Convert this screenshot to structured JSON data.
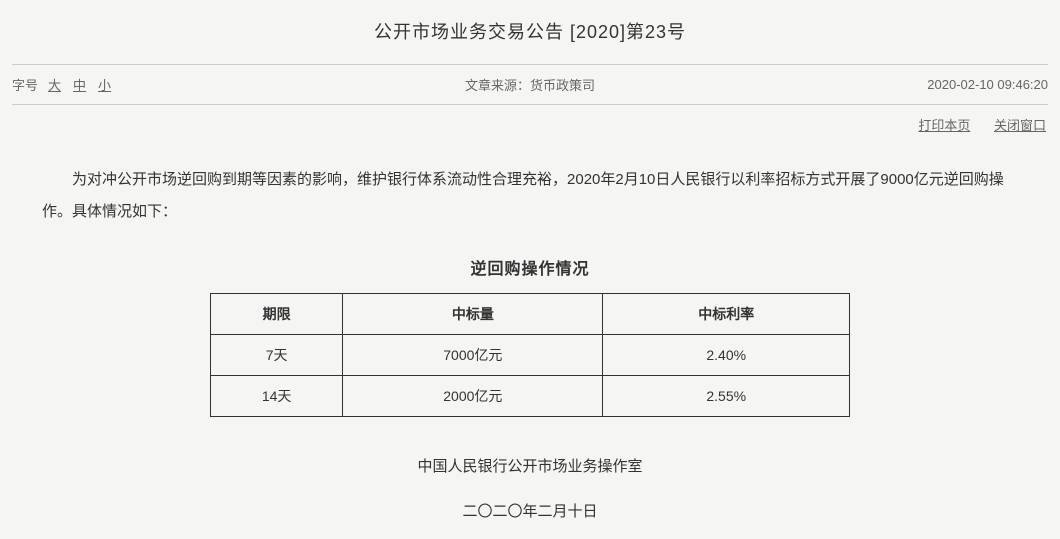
{
  "title": "公开市场业务交易公告 [2020]第23号",
  "meta": {
    "fontSizeLabel": "字号",
    "large": "大",
    "medium": "中",
    "small": "小",
    "sourceLabel": "文章来源：",
    "sourceValue": "货币政策司",
    "timestamp": "2020-02-10 09:46:20"
  },
  "actions": {
    "print": "打印本页",
    "close": "关闭窗口"
  },
  "body": "为对冲公开市场逆回购到期等因素的影响，维护银行体系流动性合理充裕，2020年2月10日人民银行以利率招标方式开展了9000亿元逆回购操作。具体情况如下：",
  "table": {
    "title": "逆回购操作情况",
    "columns": [
      "期限",
      "中标量",
      "中标利率"
    ],
    "rows": [
      [
        "7天",
        "7000亿元",
        "2.40%"
      ],
      [
        "14天",
        "2000亿元",
        "2.55%"
      ]
    ]
  },
  "footer": {
    "org": "中国人民银行公开市场业务操作室",
    "date": "二〇二〇年二月十日"
  },
  "style": {
    "background": "#f5f5f3",
    "textColor": "#333333",
    "mutedColor": "#666666",
    "dividerColor": "#cccccc",
    "tableBorderColor": "#333333"
  }
}
